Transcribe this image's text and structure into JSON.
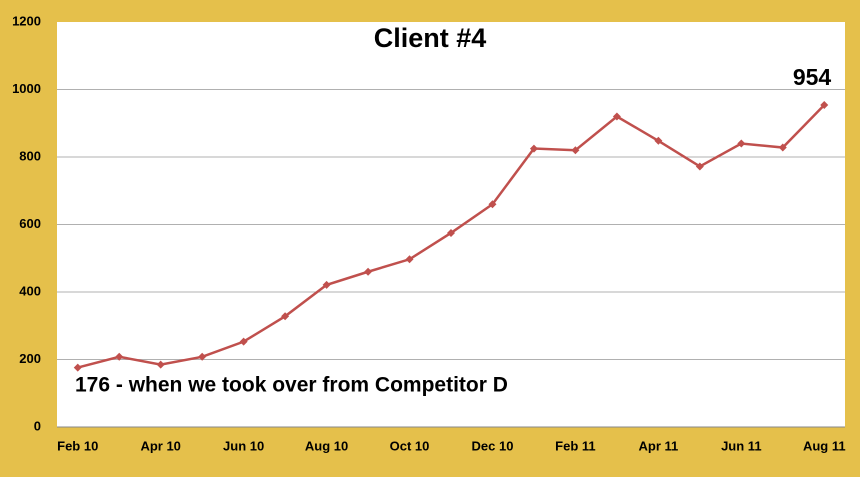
{
  "chart_data": {
    "type": "line",
    "title": "Client #4",
    "categories": [
      "Feb 10",
      null,
      "Apr 10",
      null,
      "Jun 10",
      null,
      "Aug 10",
      null,
      "Oct 10",
      null,
      "Dec 10",
      null,
      "Feb 11",
      null,
      "Apr 11",
      null,
      "Jun 11",
      null,
      "Aug 11"
    ],
    "series": [
      {
        "color": "#C0504D",
        "values": [
          176,
          208,
          185,
          208,
          253,
          328,
          421,
          460,
          497,
          575,
          660,
          825,
          820,
          920,
          848,
          772,
          840,
          828,
          954
        ]
      }
    ],
    "ylim": [
      0,
      1200
    ],
    "yticks": [
      0,
      200,
      400,
      600,
      800,
      1000,
      1200
    ],
    "grid": true,
    "annotations": [
      "954",
      "176 - when we took over from Competitor D"
    ]
  }
}
